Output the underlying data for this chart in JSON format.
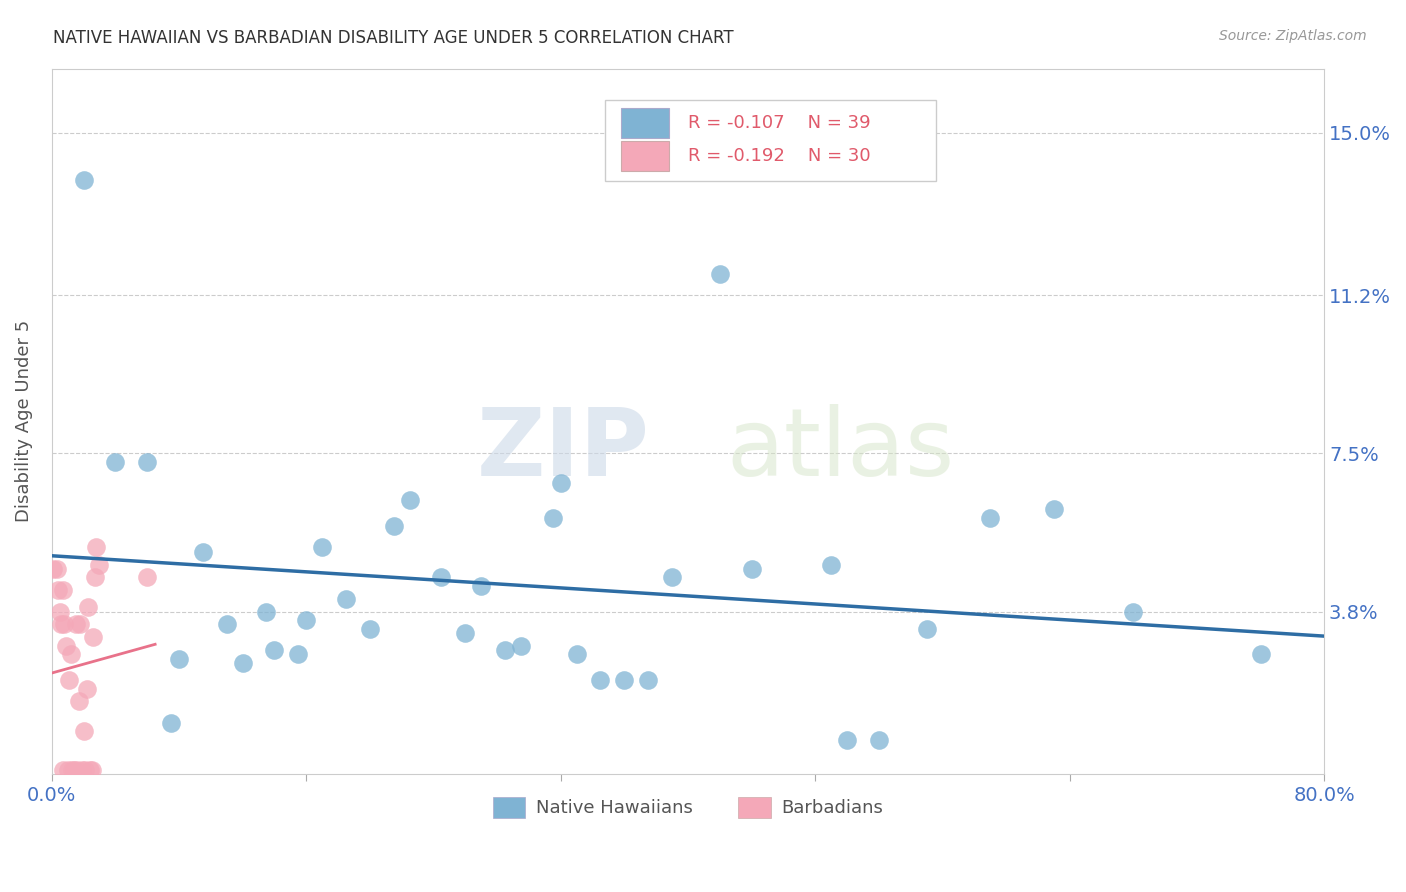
{
  "title": "NATIVE HAWAIIAN VS BARBADIAN DISABILITY AGE UNDER 5 CORRELATION CHART",
  "source": "Source: ZipAtlas.com",
  "ylabel": "Disability Age Under 5",
  "xlim": [
    0.0,
    0.8
  ],
  "ylim": [
    0.0,
    0.165
  ],
  "xticks": [
    0.0,
    0.16,
    0.32,
    0.48,
    0.64,
    0.8
  ],
  "xticklabels": [
    "0.0%",
    "",
    "",
    "",
    "",
    "80.0%"
  ],
  "ytick_positions": [
    0.038,
    0.075,
    0.112,
    0.15
  ],
  "ytick_labels": [
    "3.8%",
    "7.5%",
    "11.2%",
    "15.0%"
  ],
  "native_hawaiian_R": -0.107,
  "native_hawaiian_N": 39,
  "barbadian_R": -0.192,
  "barbadian_N": 30,
  "native_hawaiian_color": "#7FB3D3",
  "barbadian_color": "#F4A8B8",
  "trend_hawaiian_color": "#2E6DA4",
  "trend_barbadian_color": "#E8728A",
  "watermark_zip": "ZIP",
  "watermark_atlas": "atlas",
  "native_hawaiian_x": [
    0.02,
    0.04,
    0.06,
    0.075,
    0.08,
    0.095,
    0.11,
    0.12,
    0.135,
    0.14,
    0.155,
    0.16,
    0.17,
    0.185,
    0.2,
    0.215,
    0.225,
    0.245,
    0.26,
    0.27,
    0.285,
    0.295,
    0.315,
    0.32,
    0.33,
    0.345,
    0.36,
    0.375,
    0.39,
    0.42,
    0.44,
    0.49,
    0.5,
    0.52,
    0.55,
    0.59,
    0.63,
    0.68,
    0.76
  ],
  "native_hawaiian_y": [
    0.139,
    0.073,
    0.073,
    0.012,
    0.027,
    0.052,
    0.035,
    0.026,
    0.038,
    0.029,
    0.028,
    0.036,
    0.053,
    0.041,
    0.034,
    0.058,
    0.064,
    0.046,
    0.033,
    0.044,
    0.029,
    0.03,
    0.06,
    0.068,
    0.028,
    0.022,
    0.022,
    0.022,
    0.046,
    0.117,
    0.048,
    0.049,
    0.008,
    0.008,
    0.034,
    0.06,
    0.062,
    0.038,
    0.028
  ],
  "barbadian_x": [
    0.001,
    0.003,
    0.004,
    0.005,
    0.006,
    0.007,
    0.007,
    0.008,
    0.009,
    0.01,
    0.011,
    0.012,
    0.013,
    0.014,
    0.015,
    0.016,
    0.017,
    0.018,
    0.019,
    0.02,
    0.021,
    0.022,
    0.023,
    0.024,
    0.025,
    0.026,
    0.027,
    0.028,
    0.03,
    0.06
  ],
  "barbadian_y": [
    0.048,
    0.048,
    0.043,
    0.038,
    0.035,
    0.043,
    0.001,
    0.035,
    0.03,
    0.001,
    0.022,
    0.028,
    0.001,
    0.001,
    0.035,
    0.001,
    0.017,
    0.035,
    0.001,
    0.01,
    0.001,
    0.02,
    0.039,
    0.001,
    0.001,
    0.032,
    0.046,
    0.053,
    0.049,
    0.046
  ]
}
